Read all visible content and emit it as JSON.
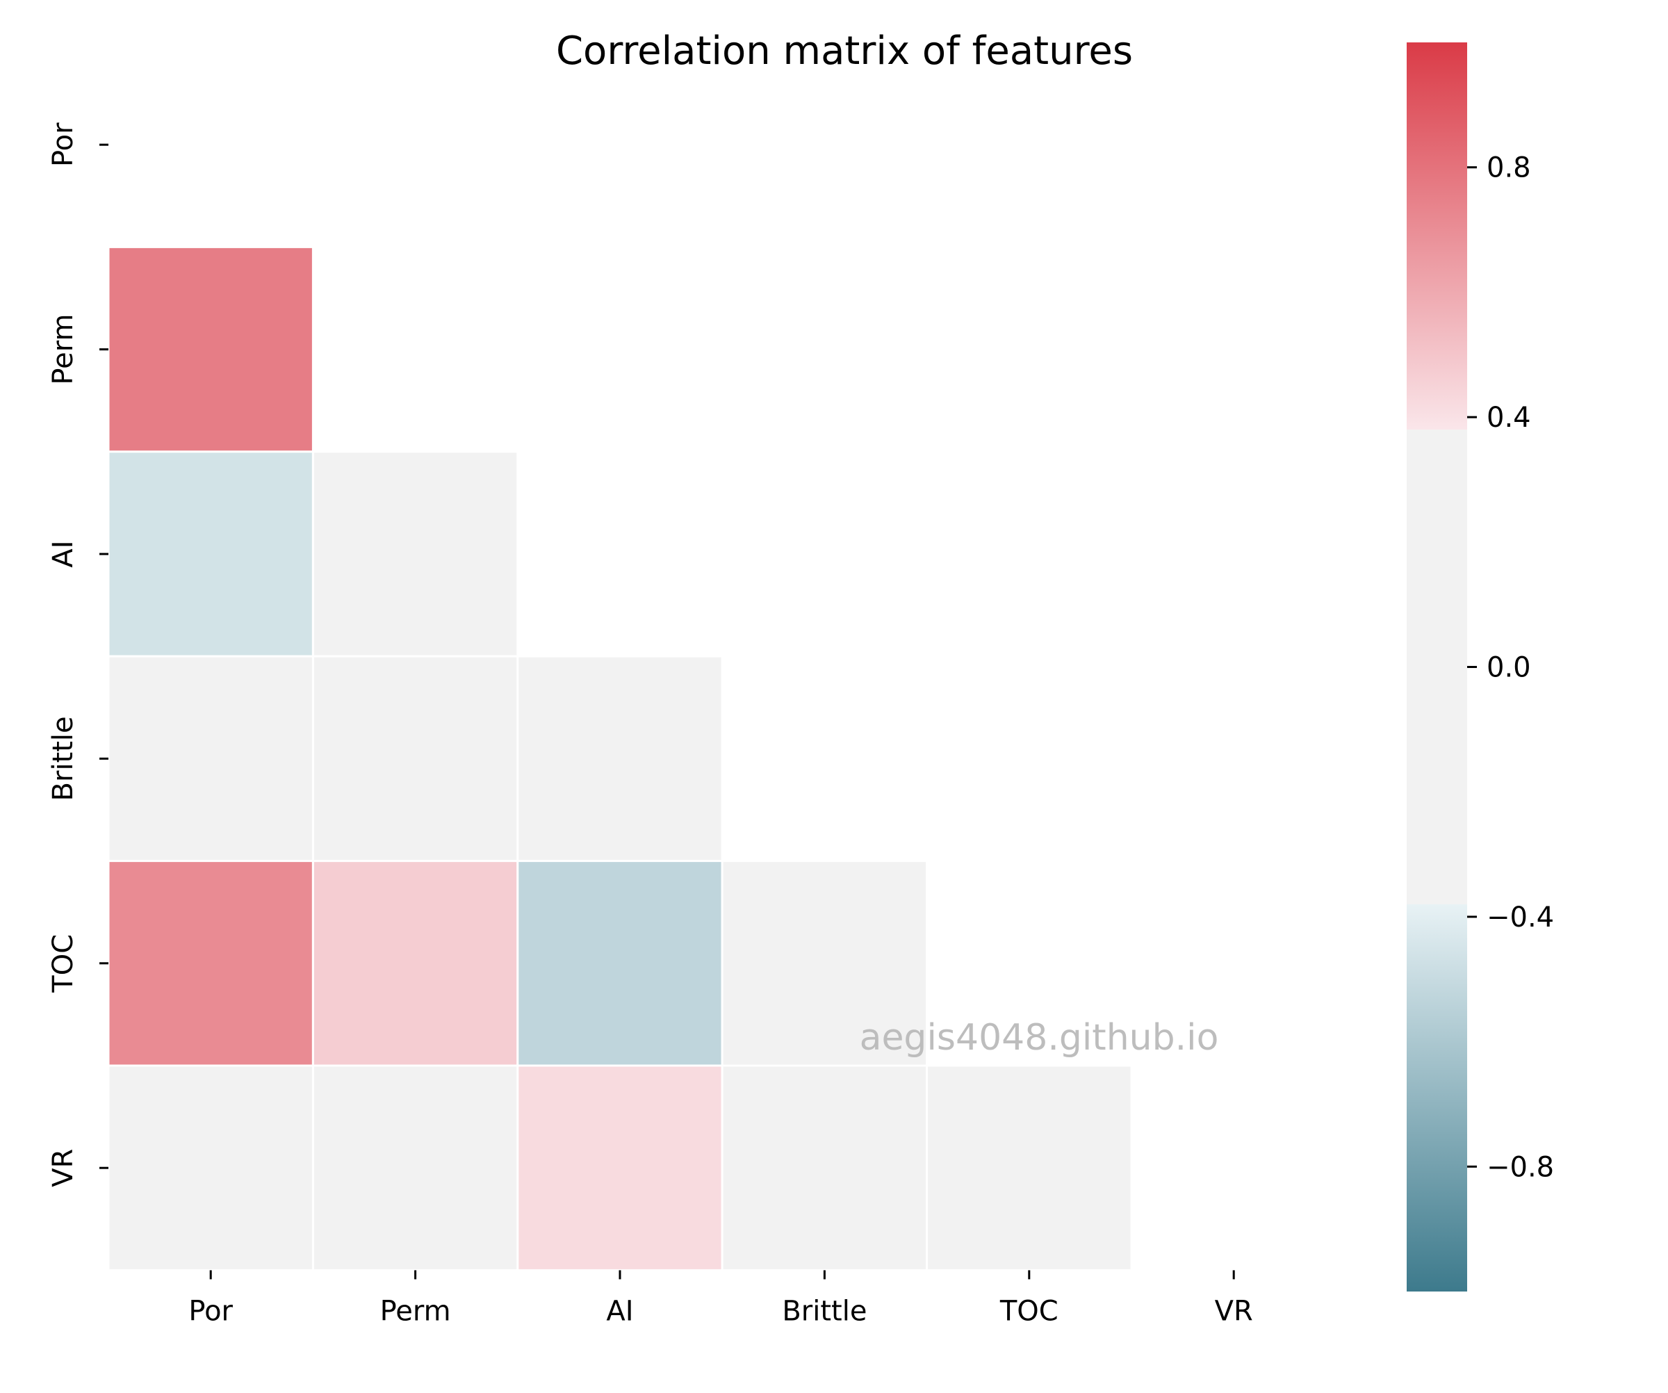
{
  "chart_data": {
    "type": "heatmap",
    "title": "Correlation matrix of features",
    "row_labels": [
      "Por",
      "Perm",
      "AI",
      "Brittle",
      "TOC",
      "VR"
    ],
    "col_labels": [
      "Por",
      "Perm",
      "AI",
      "Brittle",
      "TOC",
      "VR"
    ],
    "mask": "upper triangle including diagonal",
    "cells": [
      {
        "row": "Perm",
        "col": "Por",
        "value": 0.76
      },
      {
        "row": "AI",
        "col": "Por",
        "value": -0.46
      },
      {
        "row": "AI",
        "col": "Perm",
        "value": -0.24
      },
      {
        "row": "Brittle",
        "col": "Por",
        "value": -0.22
      },
      {
        "row": "Brittle",
        "col": "Perm",
        "value": -0.32
      },
      {
        "row": "Brittle",
        "col": "AI",
        "value": 0.17
      },
      {
        "row": "TOC",
        "col": "Por",
        "value": 0.71
      },
      {
        "row": "TOC",
        "col": "Perm",
        "value": 0.47
      },
      {
        "row": "TOC",
        "col": "AI",
        "value": -0.53
      },
      {
        "row": "TOC",
        "col": "Brittle",
        "value": -0.21
      },
      {
        "row": "VR",
        "col": "Por",
        "value": 0.11
      },
      {
        "row": "VR",
        "col": "Perm",
        "value": -0.18
      },
      {
        "row": "VR",
        "col": "AI",
        "value": 0.42
      },
      {
        "row": "VR",
        "col": "Brittle",
        "value": -0.36
      },
      {
        "row": "VR",
        "col": "TOC",
        "value": 0.3
      }
    ],
    "colorbar": {
      "vmin": -1.0,
      "vmax": 1.0,
      "ticks": [
        0.8,
        0.4,
        0.0,
        -0.4,
        -0.8
      ],
      "tick_labels": [
        "0.8",
        "0.4",
        "0.0",
        "−0.4",
        "−0.8"
      ],
      "neutral_band": [
        -0.38,
        0.38
      ],
      "colors": {
        "negative_end": "#3d7a8c",
        "negative_light": "#e8f2f5",
        "neutral": "#f2f2f2",
        "positive_light": "#fae6ea",
        "positive_end": "#da3b47"
      }
    },
    "watermark": "aegis4048.github.io",
    "grid": false
  }
}
